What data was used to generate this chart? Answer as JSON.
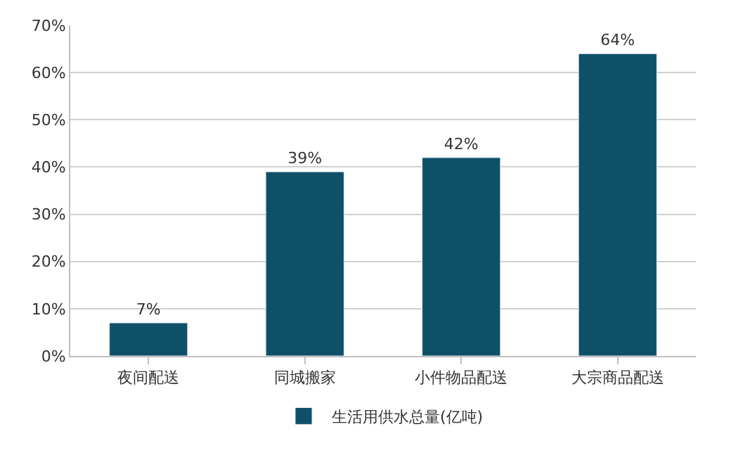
{
  "chart_data": {
    "type": "bar",
    "categories": [
      "夜间配送",
      "同城搬家",
      "小件物品配送",
      "大宗商品配送"
    ],
    "series": [
      {
        "name": "生活用供水总量(亿吨)",
        "color": "#0e5068",
        "values": [
          7,
          39,
          42,
          64
        ],
        "value_labels": [
          "7%",
          "39%",
          "42%",
          "64%"
        ]
      }
    ],
    "ylim": [
      0,
      70
    ],
    "yticks": [
      {
        "value": 0,
        "label": "0%"
      },
      {
        "value": 10,
        "label": "10%"
      },
      {
        "value": 20,
        "label": "20%"
      },
      {
        "value": 30,
        "label": "30%"
      },
      {
        "value": 40,
        "label": "40%"
      },
      {
        "value": 50,
        "label": "50%"
      },
      {
        "value": 60,
        "label": "60%"
      },
      {
        "value": 70,
        "label": "70%"
      }
    ],
    "grid": "y",
    "legend": "bottom"
  }
}
